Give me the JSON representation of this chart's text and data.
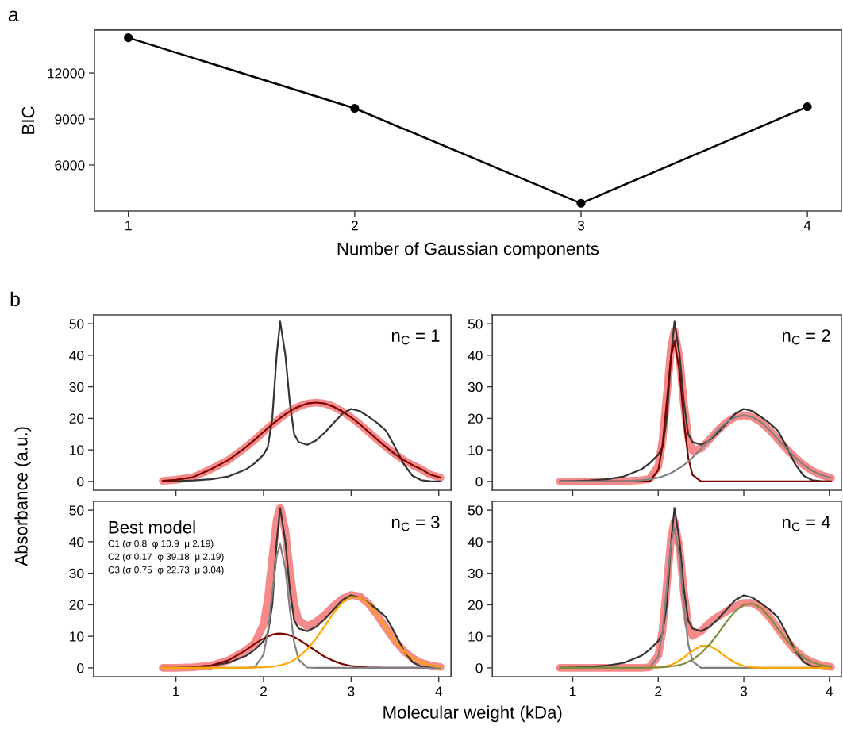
{
  "chart_data": [
    {
      "type": "line",
      "title": "a",
      "xlabel": "Number of Gaussian components",
      "ylabel": "BIC",
      "x": [
        1,
        2,
        3,
        4
      ],
      "marker": "circle",
      "series": [
        {
          "color": "#000000",
          "values": [
            14300,
            9700,
            3500,
            9800
          ]
        }
      ],
      "xlim": [
        0.85,
        4.15
      ],
      "xticks": [
        1,
        2,
        3,
        4
      ],
      "ylim": [
        3000,
        14800
      ],
      "yticks": [
        6000,
        9000,
        12000
      ]
    },
    {
      "type": "line",
      "title": "b",
      "annotations": [
        "n$_{C}$ = 1"
      ],
      "tick_labels": "y",
      "x": [
        0.85,
        1.0,
        1.2,
        1.4,
        1.6,
        1.8,
        1.9,
        2.0,
        2.05,
        2.1,
        2.15,
        2.19,
        2.25,
        2.3,
        2.35,
        2.4,
        2.5,
        2.6,
        2.7,
        2.8,
        2.9,
        3.0,
        3.1,
        3.2,
        3.3,
        3.4,
        3.5,
        3.6,
        3.7,
        3.8,
        3.9,
        4.02
      ],
      "series": [
        {
          "color": "#f47676",
          "values": [
            0.2,
            0.5,
            1.4,
            3.9,
            6.8,
            10.9,
            13.2,
            15.7,
            16.9,
            18.1,
            19.2,
            20.1,
            21.3,
            22.2,
            23.1,
            23.7,
            24.7,
            25,
            24.7,
            23.7,
            22.2,
            20.3,
            18.1,
            15.7,
            13.2,
            10.9,
            8.7,
            6.8,
            5.2,
            3.9,
            2.2,
            1.2
          ]
        },
        {
          "color": "#333333",
          "values": [
            0,
            0.1,
            0.3,
            0.7,
            1.6,
            3.8,
            5.8,
            8.5,
            11,
            20,
            40,
            50.7,
            40,
            25,
            15,
            12.5,
            11.6,
            13,
            15.5,
            18.5,
            21.5,
            23,
            22.3,
            20.5,
            18.5,
            16,
            11,
            5.5,
            1.8,
            0.4,
            0.1,
            0
          ]
        },
        {
          "color": "#7a0000",
          "values": [
            0.2,
            0.5,
            1.4,
            3.9,
            6.8,
            10.9,
            13.2,
            15.7,
            16.9,
            18.1,
            19.2,
            20.1,
            21.3,
            22.2,
            23.1,
            23.7,
            24.7,
            25,
            24.7,
            23.7,
            22.2,
            20.3,
            18.1,
            15.7,
            13.2,
            10.9,
            8.7,
            6.8,
            5.2,
            3.9,
            2.2,
            1.2
          ]
        }
      ],
      "xlim": [
        0.06,
        4.14
      ],
      "xticks": [
        1,
        2,
        3,
        4
      ],
      "ylim": [
        -2.8,
        52.8
      ],
      "yticks": [
        0,
        10,
        20,
        30,
        40,
        50
      ]
    },
    {
      "type": "line",
      "annotations": [
        "n$_{C}$ = 2"
      ],
      "tick_labels": "y",
      "x": [
        0.85,
        1.0,
        1.2,
        1.4,
        1.6,
        1.8,
        1.9,
        2.0,
        2.05,
        2.1,
        2.15,
        2.19,
        2.25,
        2.3,
        2.35,
        2.4,
        2.5,
        2.6,
        2.7,
        2.8,
        2.9,
        3.0,
        3.1,
        3.2,
        3.3,
        3.4,
        3.5,
        3.6,
        3.7,
        3.8,
        3.9,
        4.02
      ],
      "series": [
        {
          "color": "#f47676",
          "values": [
            0,
            0,
            0,
            0,
            0.1,
            0.4,
            0.8,
            4.8,
            13,
            27.5,
            42.5,
            47.8,
            39,
            24.5,
            13.9,
            9.7,
            10.4,
            13.3,
            16.3,
            18.8,
            20.4,
            21,
            20.4,
            18.8,
            16.3,
            13.3,
            10.3,
            7.6,
            5.2,
            3.4,
            2.1,
            1.1
          ]
        },
        {
          "color": "#333333",
          "values": [
            0,
            0.1,
            0.3,
            0.7,
            1.6,
            3.8,
            5.8,
            8.5,
            11,
            20,
            40,
            50.7,
            40,
            25,
            15,
            12.5,
            11.6,
            13,
            15.5,
            18.5,
            21.5,
            23,
            22.3,
            20.5,
            18.5,
            16,
            11,
            5.5,
            1.8,
            0.4,
            0.1,
            0
          ]
        },
        {
          "color": "#7a0000",
          "values": [
            0,
            0,
            0,
            0,
            0,
            0,
            0.1,
            3.6,
            11.4,
            25.4,
            39.8,
            44.5,
            34.7,
            19.3,
            7.6,
            2.1,
            0,
            0,
            0,
            0,
            0,
            0,
            0,
            0,
            0,
            0,
            0,
            0,
            0,
            0,
            0,
            0
          ]
        },
        {
          "color": "#808080",
          "values": [
            0,
            0,
            0,
            0,
            0.1,
            0.4,
            0.7,
            1.2,
            1.6,
            2.1,
            2.7,
            3.3,
            4.3,
            5.2,
            6.3,
            7.6,
            10.3,
            13.3,
            16.3,
            18.8,
            20.4,
            21,
            20.4,
            18.8,
            16.3,
            13.3,
            10.3,
            7.6,
            5.2,
            3.4,
            2.1,
            1.1
          ]
        }
      ],
      "xlim": [
        0.06,
        4.14
      ],
      "xticks": [
        1,
        2,
        3,
        4
      ],
      "ylim": [
        -2.8,
        52.8
      ],
      "yticks": [
        0,
        10,
        20,
        30,
        40,
        50
      ]
    },
    {
      "type": "line",
      "xlabel": "Molecular weight (kDa)",
      "ylabel": "Absorbance (a.u.)",
      "annotations": [
        "n$_{C}$ = 3",
        "Best model",
        "C1 (σ 0.8  φ 10.9  μ 2.19)",
        "C2 (σ 0.17  φ 39.18  μ 2.19)",
        "C3 (σ 0.75  φ 22.73  μ 3.04)"
      ],
      "x": [
        0.85,
        1.0,
        1.2,
        1.4,
        1.6,
        1.8,
        1.9,
        2.0,
        2.05,
        2.1,
        2.15,
        2.19,
        2.25,
        2.3,
        2.35,
        2.4,
        2.5,
        2.6,
        2.7,
        2.8,
        2.9,
        3.0,
        3.1,
        3.2,
        3.3,
        3.4,
        3.5,
        3.6,
        3.7,
        3.8,
        3.9,
        4.02
      ],
      "series": [
        {
          "color": "#f47676",
          "values": [
            0,
            0,
            0.2,
            0.7,
            2.4,
            5.6,
            7.9,
            13.7,
            22,
            34.7,
            46.9,
            50.9,
            43.4,
            30.7,
            20.4,
            15.1,
            13.2,
            14.6,
            16.8,
            19.6,
            21.9,
            23.1,
            22.6,
            20.3,
            16.7,
            12.5,
            8.6,
            5.4,
            3.1,
            1.6,
            0.8,
            0.3
          ]
        },
        {
          "color": "#333333",
          "values": [
            null,
            null,
            0.3,
            0.7,
            1.6,
            3.8,
            5.8,
            8.5,
            11,
            20,
            40,
            50.7,
            40,
            25,
            15,
            12.5,
            11.6,
            13,
            15.5,
            18.5,
            21.5,
            23,
            22.3,
            20.5,
            18.5,
            16,
            11,
            5.5,
            1.8,
            0.4,
            0.1,
            0
          ]
        },
        {
          "color": "#7a0000",
          "values": [
            0,
            0,
            0.2,
            0.7,
            2.4,
            5.6,
            7.6,
            9.3,
            10,
            10.5,
            10.8,
            10.9,
            10.7,
            10.3,
            9.8,
            9,
            7.2,
            5.3,
            3.5,
            2.2,
            1.2,
            0.6,
            0.3,
            0.1,
            0.1,
            0,
            0,
            0,
            0,
            0,
            0,
            0
          ]
        },
        {
          "color": "#808080",
          "values": [
            0,
            0,
            0,
            0,
            0,
            0,
            0.2,
            4.2,
            11.7,
            23.8,
            35.5,
            39.2,
            31.4,
            18.6,
            8.1,
            2.6,
            0.1,
            0,
            0,
            0,
            0,
            0,
            0,
            0,
            0,
            0,
            0,
            0,
            0,
            0,
            0,
            0
          ]
        },
        {
          "color": "#ffa500",
          "values": [
            0,
            0,
            0,
            0,
            0,
            0,
            0.1,
            0.2,
            0.3,
            0.4,
            0.6,
            0.8,
            1.3,
            1.8,
            2.5,
            3.5,
            5.9,
            9.3,
            13.3,
            17.4,
            20.7,
            22.5,
            22.3,
            20.2,
            16.6,
            12.5,
            8.6,
            5.4,
            3.1,
            1.6,
            0.8,
            0.3
          ]
        }
      ],
      "xlim": [
        0.06,
        4.14
      ],
      "xticks": [
        1,
        2,
        3,
        4
      ],
      "ylim": [
        -2.8,
        52.8
      ],
      "yticks": [
        0,
        10,
        20,
        30,
        40,
        50
      ]
    },
    {
      "type": "line",
      "annotations": [
        "n$_{C}$ = 4"
      ],
      "x": [
        0.85,
        1.0,
        1.2,
        1.4,
        1.6,
        1.8,
        1.9,
        2.0,
        2.05,
        2.1,
        2.15,
        2.19,
        2.25,
        2.3,
        2.35,
        2.4,
        2.5,
        2.6,
        2.7,
        2.8,
        2.9,
        3.0,
        3.1,
        3.2,
        3.3,
        3.4,
        3.5,
        3.6,
        3.7,
        3.8,
        3.9,
        4.02
      ],
      "series": [
        {
          "color": "#f47676",
          "values": [
            0,
            0,
            0,
            0,
            0,
            0,
            0.2,
            3.9,
            11.9,
            26.3,
            41.2,
            46.5,
            37.9,
            23.9,
            13.9,
            10.1,
            11.6,
            14.4,
            16.3,
            18,
            19.6,
            20.6,
            20.6,
            19,
            16.1,
            12.4,
            8.8,
            5.6,
            3.3,
            1.8,
            0.9,
            0.3
          ]
        },
        {
          "color": "#333333",
          "values": [
            0,
            0.1,
            0.3,
            0.7,
            1.6,
            3.8,
            5.8,
            8.5,
            11,
            20,
            40,
            50.7,
            40,
            25,
            15,
            12.5,
            11.6,
            13,
            15.5,
            18.5,
            21.5,
            23,
            22.3,
            20.5,
            18.5,
            16,
            11,
            5.5,
            1.8,
            0.4,
            0.1,
            0
          ]
        },
        {
          "color": "#808080",
          "values": [
            0,
            0,
            0,
            0,
            0,
            0,
            0.1,
            3.6,
            11.4,
            25.4,
            39.8,
            44.5,
            34.7,
            19.3,
            7.6,
            2.1,
            0,
            0,
            0,
            0,
            0,
            0,
            0,
            0,
            0,
            0,
            0,
            0,
            0,
            0,
            0,
            0
          ]
        },
        {
          "color": "#ffa500",
          "values": [
            null,
            null,
            null,
            null,
            null,
            null,
            0.1,
            0.2,
            0.3,
            0.6,
            0.9,
            1.4,
            2.3,
            3.3,
            4.4,
            5.4,
            7,
            7,
            5.4,
            3.3,
            1.6,
            0.6,
            0.2,
            0,
            0,
            0,
            0,
            0,
            0,
            0,
            0,
            0
          ]
        },
        {
          "color": "#7f8c3a",
          "values": [
            0,
            0,
            0,
            0,
            0,
            0,
            0.1,
            0.1,
            0.2,
            0.3,
            0.5,
            0.6,
            0.9,
            1.3,
            1.9,
            2.6,
            4.6,
            7.4,
            10.9,
            14.7,
            18,
            20,
            20.4,
            19,
            16.1,
            12.4,
            8.8,
            5.6,
            3.3,
            1.8,
            0.9,
            0.3
          ]
        }
      ],
      "xlim": [
        0.06,
        4.14
      ],
      "xticks": [
        1,
        2,
        3,
        4
      ],
      "ylim": [
        -2.8,
        52.8
      ],
      "yticks": [
        0,
        10,
        20,
        30,
        40,
        50
      ]
    }
  ]
}
